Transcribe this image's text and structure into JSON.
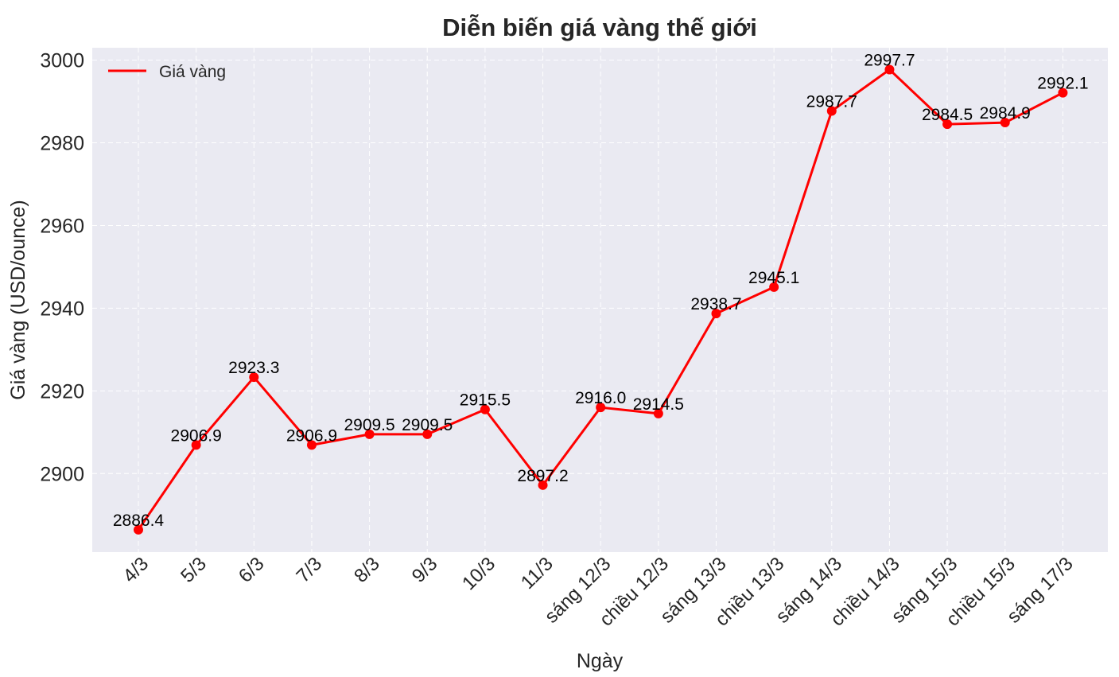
{
  "chart_data": {
    "type": "line",
    "title": "Diễn biến giá vàng thế giới",
    "xlabel": "Ngày",
    "ylabel": "Giá vàng (USD/ounce)",
    "categories": [
      "4/3",
      "5/3",
      "6/3",
      "7/3",
      "8/3",
      "9/3",
      "10/3",
      "11/3",
      "sáng 12/3",
      "chiều 12/3",
      "sáng 13/3",
      "chiều 13/3",
      "sáng 14/3",
      "chiều 14/3",
      "sáng 15/3",
      "chiều 15/3",
      "sáng 17/3"
    ],
    "series": [
      {
        "name": "Giá vàng",
        "color": "#ff0000",
        "values": [
          2886.4,
          2906.9,
          2923.3,
          2906.9,
          2909.5,
          2909.5,
          2915.5,
          2897.2,
          2916.0,
          2914.5,
          2938.7,
          2945.1,
          2987.7,
          2997.7,
          2984.5,
          2984.9,
          2992.1
        ]
      }
    ],
    "data_labels": [
      "2886.4",
      "2906.9",
      "2923.3",
      "2906.9",
      "2909.5",
      "2909.5",
      "2915.5",
      "2897.2",
      "2916.0",
      "2914.5",
      "2938.7",
      "2945.1",
      "2987.7",
      "2997.7",
      "2984.5",
      "2984.9",
      "2992.1"
    ],
    "yticks": [
      2900,
      2920,
      2940,
      2960,
      2980,
      3000
    ],
    "ylim": [
      2881,
      3003
    ],
    "grid": true,
    "legend_position": "top-left",
    "plot_background": "#eaeaf2",
    "grid_color": "#ffffff"
  }
}
